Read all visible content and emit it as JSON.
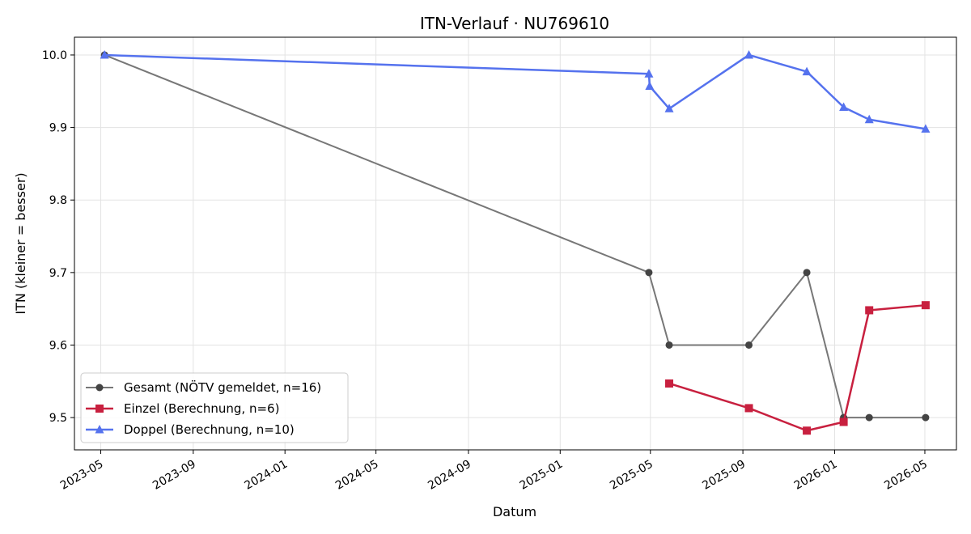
{
  "chart_data": {
    "type": "line",
    "title": "ITN-Verlauf · NU769610",
    "xlabel": "Datum",
    "ylabel": "ITN  (kleiner = besser)",
    "xlim": [
      "2023-03-27",
      "2026-06-12"
    ],
    "ylim": [
      9.4555,
      10.0245
    ],
    "x_ticks": [
      "2023-05",
      "2023-09",
      "2024-01",
      "2024-05",
      "2024-09",
      "2025-01",
      "2025-05",
      "2025-09",
      "2026-01",
      "2026-05"
    ],
    "y_ticks": [
      9.5,
      9.6,
      9.7,
      9.8,
      9.9,
      10.0
    ],
    "grid": true,
    "legend_position": "lower-left",
    "series": [
      {
        "name": "Gesamt (NÖTV gemeldet, n=16)",
        "color": "#777777",
        "marker_color": "#444444",
        "marker": "circle",
        "points": [
          {
            "x": "2023-05-06",
            "y": 10.0
          },
          {
            "x": "2025-04-29",
            "y": 9.7
          },
          {
            "x": "2025-05-26",
            "y": 9.6
          },
          {
            "x": "2025-09-09",
            "y": 9.6
          },
          {
            "x": "2025-11-25",
            "y": 9.7
          },
          {
            "x": "2026-01-13",
            "y": 9.5
          },
          {
            "x": "2026-02-16",
            "y": 9.5
          },
          {
            "x": "2026-05-02",
            "y": 9.5
          }
        ]
      },
      {
        "name": "Einzel (Berechnung, n=6)",
        "color": "#c8203f",
        "marker_color": "#c8203f",
        "marker": "square",
        "points": [
          {
            "x": "2025-05-26",
            "y": 9.547
          },
          {
            "x": "2025-09-09",
            "y": 9.513
          },
          {
            "x": "2025-11-25",
            "y": 9.482
          },
          {
            "x": "2026-01-13",
            "y": 9.494
          },
          {
            "x": "2026-02-16",
            "y": 9.648
          },
          {
            "x": "2026-05-02",
            "y": 9.655
          }
        ]
      },
      {
        "name": "Doppel (Berechnung, n=10)",
        "color": "#5572ee",
        "marker_color": "#5572ee",
        "marker": "triangle",
        "points": [
          {
            "x": "2023-05-06",
            "y": 10.0
          },
          {
            "x": "2025-04-29",
            "y": 9.974
          },
          {
            "x": "2025-04-30",
            "y": 9.957
          },
          {
            "x": "2025-05-26",
            "y": 9.926
          },
          {
            "x": "2025-09-09",
            "y": 10.0
          },
          {
            "x": "2025-11-25",
            "y": 9.977
          },
          {
            "x": "2026-01-13",
            "y": 9.928
          },
          {
            "x": "2026-02-16",
            "y": 9.911
          },
          {
            "x": "2026-05-02",
            "y": 9.898
          }
        ]
      }
    ]
  }
}
